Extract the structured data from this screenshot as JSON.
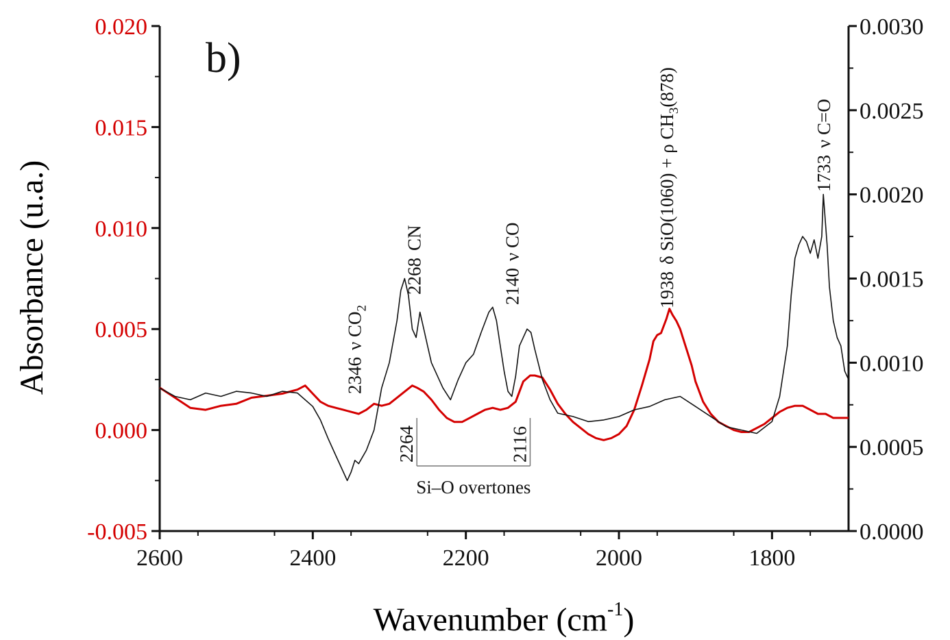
{
  "colors": {
    "black": "#111111",
    "red": "#d40000",
    "guide": "#777777"
  },
  "chart_data": {
    "type": "line",
    "panel_label": "b)",
    "xlabel": "Wavenumber (cm",
    "xlabel_sup": "-1",
    "xlabel_close": ")",
    "ylabel_left": "Absorbance (u.a.)",
    "xlim": [
      2600,
      1700
    ],
    "x_ticks": [
      2600,
      2400,
      2200,
      2000,
      1800
    ],
    "x_tick_labels": [
      "2600",
      "2400",
      "2200",
      "2000",
      "1800"
    ],
    "ylim_left": [
      -0.005,
      0.02
    ],
    "y_left_ticks": [
      -0.005,
      0.0,
      0.005,
      0.01,
      0.015,
      0.02
    ],
    "y_left_tick_labels": [
      "-0.005",
      "0.000",
      "0.005",
      "0.010",
      "0.015",
      "0.020"
    ],
    "ylim_right": [
      0.0,
      0.003
    ],
    "y_right_ticks": [
      0.0,
      0.0005,
      0.001,
      0.0015,
      0.002,
      0.0025,
      0.003
    ],
    "y_right_tick_labels": [
      "0.0000",
      "0.0005",
      "0.0010",
      "0.0015",
      "0.0020",
      "0.0025",
      "0.0030"
    ],
    "series": [
      {
        "axis": "left",
        "color": "#d40000",
        "x": [
          2600,
          2580,
          2560,
          2540,
          2520,
          2500,
          2480,
          2460,
          2440,
          2420,
          2410,
          2400,
          2390,
          2380,
          2370,
          2360,
          2350,
          2340,
          2330,
          2320,
          2310,
          2300,
          2290,
          2280,
          2270,
          2264,
          2255,
          2245,
          2235,
          2225,
          2215,
          2205,
          2195,
          2185,
          2175,
          2165,
          2155,
          2145,
          2135,
          2125,
          2116,
          2110,
          2100,
          2090,
          2080,
          2070,
          2060,
          2050,
          2040,
          2030,
          2020,
          2010,
          2000,
          1990,
          1980,
          1970,
          1960,
          1955,
          1950,
          1945,
          1938,
          1934,
          1930,
          1925,
          1920,
          1915,
          1910,
          1905,
          1900,
          1890,
          1880,
          1870,
          1860,
          1850,
          1840,
          1830,
          1820,
          1810,
          1800,
          1790,
          1780,
          1770,
          1760,
          1750,
          1740,
          1730,
          1720,
          1710,
          1700
        ],
        "y": [
          0.0021,
          0.0016,
          0.0011,
          0.001,
          0.0012,
          0.0013,
          0.0016,
          0.0017,
          0.0018,
          0.002,
          0.0022,
          0.0018,
          0.0014,
          0.0012,
          0.0011,
          0.001,
          0.0009,
          0.0008,
          0.001,
          0.0013,
          0.0012,
          0.0013,
          0.0016,
          0.0019,
          0.0022,
          0.0021,
          0.0019,
          0.0015,
          0.001,
          0.0006,
          0.0004,
          0.0004,
          0.0006,
          0.0008,
          0.001,
          0.0011,
          0.001,
          0.0011,
          0.0014,
          0.0024,
          0.0027,
          0.0027,
          0.0026,
          0.002,
          0.0013,
          0.0008,
          0.0004,
          0.0001,
          -0.0002,
          -0.0004,
          -0.0005,
          -0.0004,
          -0.0002,
          0.0002,
          0.001,
          0.0022,
          0.0035,
          0.0044,
          0.0047,
          0.0048,
          0.0055,
          0.006,
          0.0057,
          0.0054,
          0.005,
          0.0044,
          0.0038,
          0.0032,
          0.0024,
          0.0014,
          0.0008,
          0.0004,
          0.0002,
          0.0,
          -0.0001,
          -0.0001,
          0.0001,
          0.0003,
          0.0006,
          0.0009,
          0.0011,
          0.0012,
          0.0012,
          0.001,
          0.0008,
          0.0008,
          0.0006,
          0.0006,
          0.0006
        ]
      },
      {
        "axis": "right",
        "color": "#111111",
        "x": [
          2600,
          2580,
          2560,
          2540,
          2520,
          2500,
          2480,
          2460,
          2440,
          2420,
          2400,
          2390,
          2380,
          2370,
          2360,
          2355,
          2350,
          2345,
          2340,
          2330,
          2320,
          2310,
          2300,
          2290,
          2285,
          2280,
          2275,
          2270,
          2265,
          2260,
          2255,
          2250,
          2245,
          2240,
          2235,
          2230,
          2220,
          2210,
          2200,
          2190,
          2180,
          2170,
          2165,
          2160,
          2150,
          2145,
          2140,
          2135,
          2130,
          2120,
          2115,
          2110,
          2100,
          2090,
          2080,
          2060,
          2040,
          2020,
          2000,
          1980,
          1960,
          1940,
          1920,
          1900,
          1880,
          1860,
          1840,
          1820,
          1800,
          1790,
          1780,
          1775,
          1770,
          1765,
          1760,
          1755,
          1750,
          1745,
          1740,
          1735,
          1733,
          1728,
          1725,
          1720,
          1715,
          1710,
          1705,
          1700
        ],
        "y": [
          0.00085,
          0.0008,
          0.00078,
          0.00082,
          0.0008,
          0.00083,
          0.00082,
          0.0008,
          0.00083,
          0.00082,
          0.00074,
          0.00066,
          0.00055,
          0.00045,
          0.00035,
          0.0003,
          0.00035,
          0.00042,
          0.0004,
          0.00048,
          0.0006,
          0.00085,
          0.001,
          0.00125,
          0.00143,
          0.0015,
          0.0014,
          0.0012,
          0.00115,
          0.0013,
          0.0012,
          0.0011,
          0.001,
          0.00095,
          0.0009,
          0.00085,
          0.00078,
          0.0009,
          0.001,
          0.00105,
          0.00118,
          0.0013,
          0.00133,
          0.00125,
          0.00095,
          0.00083,
          0.0008,
          0.00092,
          0.0011,
          0.0012,
          0.00118,
          0.00108,
          0.0009,
          0.00078,
          0.0007,
          0.00068,
          0.00065,
          0.00066,
          0.00068,
          0.00072,
          0.00074,
          0.00078,
          0.0008,
          0.00074,
          0.00068,
          0.00062,
          0.0006,
          0.00058,
          0.00065,
          0.0008,
          0.0011,
          0.0014,
          0.00162,
          0.0017,
          0.00175,
          0.00172,
          0.00165,
          0.00173,
          0.00162,
          0.00175,
          0.002,
          0.0017,
          0.00145,
          0.00125,
          0.00115,
          0.0011,
          0.00095,
          0.0009
        ]
      }
    ],
    "annotations": [
      {
        "x": 2346,
        "text": "2346",
        "label": "ν CO",
        "sub": "2"
      },
      {
        "x": 2268,
        "text": "2268",
        "label": "CN"
      },
      {
        "x": 2140,
        "text": "2140",
        "label": "ν CO"
      },
      {
        "x": 1938,
        "text": "1938",
        "label": "δ SiO(1060) + ρ CH",
        "sub": "3",
        "tail": "(878)"
      },
      {
        "x": 1733,
        "text": "1733",
        "label": "ν C=O"
      }
    ],
    "bracket": {
      "x_start": 2264,
      "x_end": 2116,
      "label_start": "2264",
      "label_end": "2116",
      "caption": "Si–O overtones"
    }
  }
}
